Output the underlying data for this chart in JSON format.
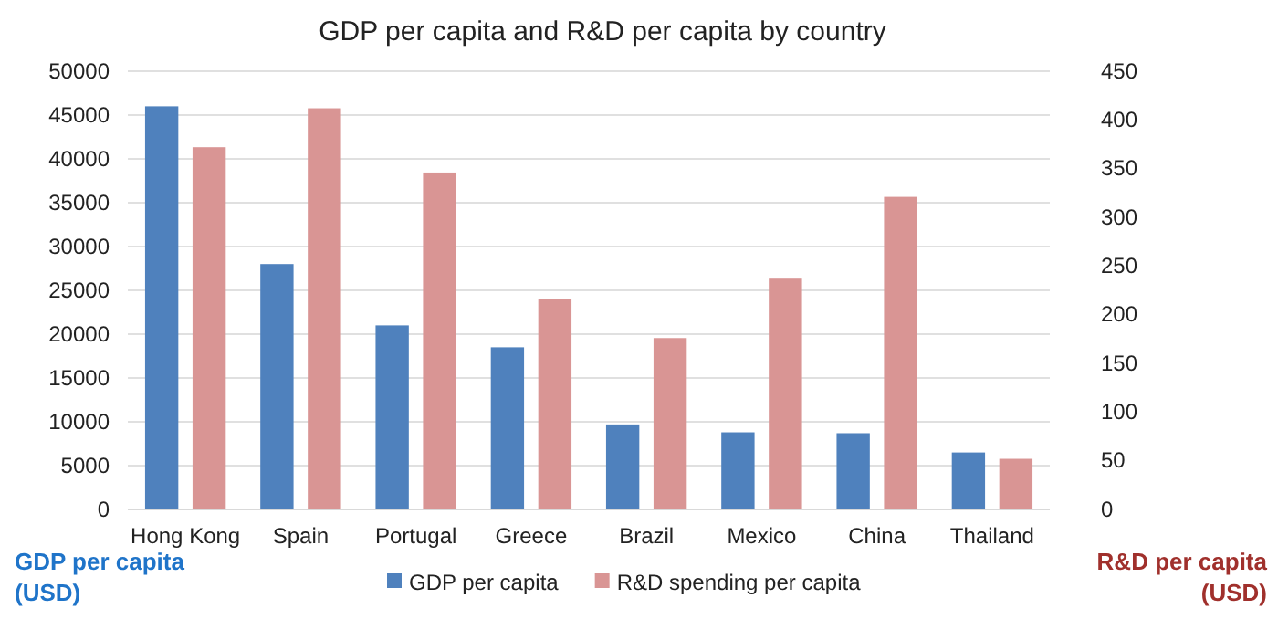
{
  "chart_data": {
    "type": "bar",
    "title": "GDP per capita and R&D per capita by country",
    "categories": [
      "Hong Kong",
      "Spain",
      "Portugal",
      "Greece",
      "Brazil",
      "Mexico",
      "China",
      "Thailand"
    ],
    "series": [
      {
        "name": "GDP per capita",
        "color": "#4f81bd",
        "values": [
          46000,
          28000,
          21000,
          18500,
          9700,
          8800,
          8700,
          6500
        ]
      },
      {
        "name": "R&D spending per capita",
        "color": "#d99594",
        "axis": "y2",
        "values": [
          372,
          412,
          346,
          216,
          176,
          237,
          321,
          52
        ]
      }
    ],
    "ylabel": "GDP per capita (USD)",
    "y2label": "R&D per capita (USD)",
    "ylim": [
      0,
      50000
    ],
    "yticks": [
      0,
      5000,
      10000,
      15000,
      20000,
      25000,
      30000,
      35000,
      40000,
      45000,
      50000
    ],
    "y2lim": [
      0,
      450
    ],
    "y2ticks": [
      0,
      50,
      100,
      150,
      200,
      250,
      300,
      350,
      400,
      450
    ],
    "grid": "y",
    "legend": "bottom"
  }
}
